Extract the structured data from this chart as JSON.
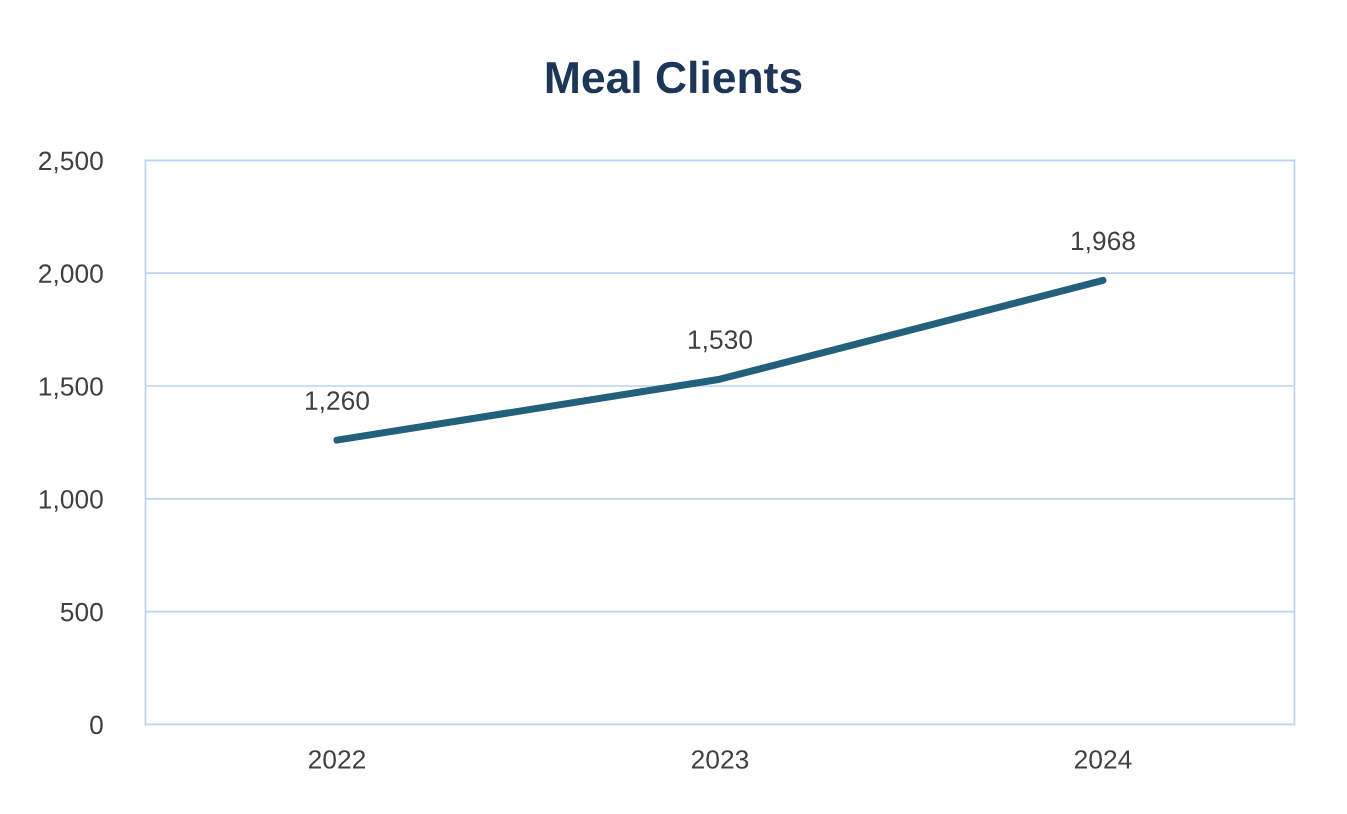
{
  "chart_data": {
    "type": "line",
    "title": "Meal Clients",
    "categories": [
      "2022",
      "2023",
      "2024"
    ],
    "series": [
      {
        "color": "#22607c",
        "values": [
          1260,
          1530,
          1968
        ],
        "value_labels": [
          "1,260",
          "1,530",
          "1,968"
        ]
      }
    ],
    "ylim": [
      0,
      2500
    ],
    "yticks": [
      0,
      500,
      {
        "value": 1000,
        "label": "1,000"
      },
      {
        "value": 1500,
        "label": "1,500"
      },
      {
        "value": 2000,
        "label": "2,000"
      },
      {
        "value": 2500,
        "label": "2,500"
      }
    ],
    "grid": "y",
    "legend": false,
    "marker": "none",
    "line_style": "solid"
  }
}
